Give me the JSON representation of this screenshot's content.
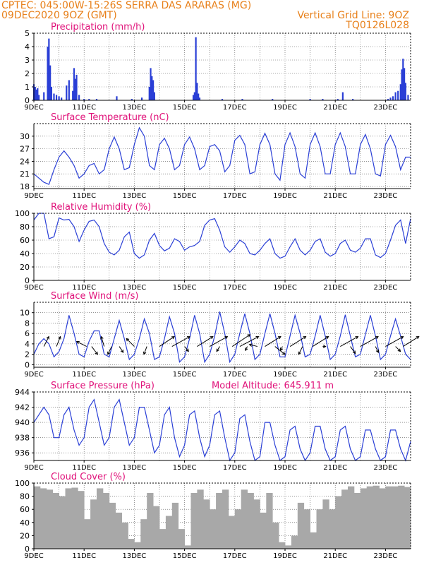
{
  "header": {
    "line1": "CPTEC:   045:00W-15:26S   SERRA DAS ARARAS (MG)",
    "line2": "09DEC2020 9OZ (GMT)",
    "grid_note": "Vertical Grid Line: 9OZ",
    "code": "TQ0126L028"
  },
  "colors": {
    "header": "#e8801a",
    "title": "#e0127a",
    "line": "#2a3fd6",
    "cloud": "#a8a8a8",
    "grid": "#555555"
  },
  "x_axis": {
    "ticks": [
      "9DEC",
      "11DEC",
      "13DEC",
      "15DEC",
      "17DEC",
      "19DEC",
      "21DEC",
      "23DEC"
    ],
    "xlim_days": [
      9,
      24
    ],
    "vertical_grid": "9OZ"
  },
  "chart_data": [
    {
      "type": "bar",
      "title": "Precipitation (mm/h)",
      "ylim": [
        0,
        5
      ],
      "yticks": [
        0,
        1,
        2,
        3,
        4,
        5
      ],
      "x": [
        9.0,
        9.05,
        9.1,
        9.15,
        9.2,
        9.4,
        9.55,
        9.6,
        9.65,
        9.7,
        9.8,
        9.9,
        10.0,
        10.1,
        10.3,
        10.4,
        10.55,
        10.6,
        10.65,
        10.7,
        10.8,
        11.0,
        11.2,
        11.5,
        12.3,
        12.9,
        13.3,
        13.6,
        13.65,
        13.7,
        13.75,
        13.8,
        15.35,
        15.4,
        15.45,
        15.5,
        15.55,
        15.6,
        16.5,
        17.3,
        18.5,
        20.0,
        20.5,
        21.1,
        21.3,
        21.7,
        23.1,
        23.2,
        23.3,
        23.4,
        23.5,
        23.6,
        23.65,
        23.7,
        23.75,
        23.8,
        23.9
      ],
      "values": [
        1.2,
        1.0,
        0.8,
        0.9,
        0.4,
        0.6,
        4.0,
        4.6,
        2.6,
        1.0,
        0.5,
        0.4,
        0.3,
        0.2,
        1.1,
        1.5,
        0.7,
        2.4,
        1.6,
        1.9,
        0.4,
        0.1,
        0.1,
        0.1,
        0.3,
        0.1,
        0.2,
        1.0,
        2.4,
        1.8,
        1.5,
        0.6,
        0.4,
        0.6,
        4.7,
        1.3,
        0.5,
        0.2,
        0.1,
        0.1,
        0.1,
        0.1,
        0.1,
        0.1,
        0.6,
        0.1,
        0.1,
        0.2,
        0.3,
        0.6,
        0.7,
        1.2,
        2.3,
        3.1,
        2.4,
        1.3,
        0.4
      ]
    },
    {
      "type": "line",
      "title": "Surface Temperature (nC)",
      "ylim": [
        17.5,
        33
      ],
      "yticks": [
        18,
        21,
        24,
        27,
        30
      ],
      "x": [
        9.0,
        9.2,
        9.4,
        9.6,
        9.8,
        10.0,
        10.2,
        10.4,
        10.6,
        10.8,
        11.0,
        11.2,
        11.4,
        11.6,
        11.8,
        12.0,
        12.2,
        12.4,
        12.6,
        12.8,
        13.0,
        13.2,
        13.4,
        13.6,
        13.8,
        14.0,
        14.2,
        14.4,
        14.6,
        14.8,
        15.0,
        15.2,
        15.4,
        15.6,
        15.8,
        16.0,
        16.2,
        16.4,
        16.6,
        16.8,
        17.0,
        17.2,
        17.4,
        17.6,
        17.8,
        18.0,
        18.2,
        18.4,
        18.6,
        18.8,
        19.0,
        19.2,
        19.4,
        19.6,
        19.8,
        20.0,
        20.2,
        20.4,
        20.6,
        20.8,
        21.0,
        21.2,
        21.4,
        21.6,
        21.8,
        22.0,
        22.2,
        22.4,
        22.6,
        22.8,
        23.0,
        23.2,
        23.4,
        23.6,
        23.8,
        24.0
      ],
      "values": [
        21,
        20,
        19,
        18.5,
        22,
        25,
        26.5,
        25,
        23,
        20,
        21,
        23,
        23.5,
        21,
        22,
        27,
        29.8,
        27,
        22,
        22.5,
        28,
        32,
        30,
        23,
        22,
        28,
        29.5,
        27,
        22,
        23,
        28,
        29.8,
        27,
        22,
        23,
        27.5,
        28,
        26.5,
        21.5,
        23,
        29,
        30.2,
        28,
        21,
        21.5,
        28,
        30.7,
        28,
        21,
        19.5,
        28,
        30.8,
        27.5,
        21,
        20,
        28,
        30.8,
        27.5,
        21,
        21,
        28,
        30.8,
        27.5,
        21,
        21,
        28,
        30.4,
        27,
        21,
        20.5,
        28,
        30.2,
        27.5,
        22,
        25,
        25
      ]
    },
    {
      "type": "line",
      "title": "Relative Humidity (%)",
      "ylim": [
        0,
        100
      ],
      "yticks": [
        0,
        20,
        40,
        60,
        80,
        100
      ],
      "x": [
        9.0,
        9.2,
        9.4,
        9.6,
        9.8,
        10.0,
        10.2,
        10.4,
        10.6,
        10.8,
        11.0,
        11.2,
        11.4,
        11.6,
        11.8,
        12.0,
        12.2,
        12.4,
        12.6,
        12.8,
        13.0,
        13.2,
        13.4,
        13.6,
        13.8,
        14.0,
        14.2,
        14.4,
        14.6,
        14.8,
        15.0,
        15.2,
        15.4,
        15.6,
        15.8,
        16.0,
        16.2,
        16.4,
        16.6,
        16.8,
        17.0,
        17.2,
        17.4,
        17.6,
        17.8,
        18.0,
        18.2,
        18.4,
        18.6,
        18.8,
        19.0,
        19.2,
        19.4,
        19.6,
        19.8,
        20.0,
        20.2,
        20.4,
        20.6,
        20.8,
        21.0,
        21.2,
        21.4,
        21.6,
        21.8,
        22.0,
        22.2,
        22.4,
        22.6,
        22.8,
        23.0,
        23.2,
        23.4,
        23.6,
        23.8,
        24.0
      ],
      "values": [
        90,
        100,
        100,
        62,
        65,
        93,
        90,
        91,
        80,
        58,
        75,
        88,
        90,
        80,
        55,
        42,
        38,
        45,
        65,
        72,
        40,
        33,
        38,
        60,
        70,
        52,
        44,
        48,
        62,
        58,
        45,
        50,
        52,
        58,
        82,
        90,
        92,
        75,
        50,
        42,
        50,
        60,
        55,
        40,
        38,
        45,
        55,
        62,
        40,
        33,
        36,
        50,
        62,
        45,
        38,
        45,
        58,
        62,
        42,
        36,
        40,
        55,
        60,
        45,
        42,
        48,
        62,
        62,
        38,
        34,
        40,
        60,
        82,
        90,
        55,
        92
      ]
    },
    {
      "type": "line",
      "title": "Surface Wind (m/s)",
      "ylim": [
        -0.5,
        12
      ],
      "yticks": [
        0,
        2,
        4,
        6,
        8,
        10
      ],
      "x": [
        9.0,
        9.2,
        9.4,
        9.6,
        9.8,
        10.0,
        10.2,
        10.4,
        10.6,
        10.8,
        11.0,
        11.2,
        11.4,
        11.6,
        11.8,
        12.0,
        12.2,
        12.4,
        12.6,
        12.8,
        13.0,
        13.2,
        13.4,
        13.6,
        13.8,
        14.0,
        14.2,
        14.4,
        14.6,
        14.8,
        15.0,
        15.2,
        15.4,
        15.6,
        15.8,
        16.0,
        16.2,
        16.4,
        16.6,
        16.8,
        17.0,
        17.2,
        17.4,
        17.6,
        17.8,
        18.0,
        18.2,
        18.4,
        18.6,
        18.8,
        19.0,
        19.2,
        19.4,
        19.6,
        19.8,
        20.0,
        20.2,
        20.4,
        20.6,
        20.8,
        21.0,
        21.2,
        21.4,
        21.6,
        21.8,
        22.0,
        22.2,
        22.4,
        22.6,
        22.8,
        23.0,
        23.2,
        23.4,
        23.6,
        23.8,
        24.0
      ],
      "values": [
        2,
        4,
        5,
        4,
        1.5,
        2.5,
        5,
        9.5,
        6,
        2,
        1.5,
        4.5,
        6.5,
        6.5,
        2,
        1.5,
        5,
        8.5,
        5,
        1,
        2,
        5,
        8.8,
        6,
        1,
        1.5,
        5,
        9.2,
        6,
        0.5,
        1.5,
        5,
        9.5,
        6,
        0.5,
        2,
        5.5,
        10.2,
        6,
        0.5,
        2,
        6,
        9.8,
        6,
        1,
        2,
        6,
        9.8,
        6,
        1.5,
        1.5,
        5.5,
        9.5,
        6,
        1.5,
        2,
        5.5,
        9.5,
        5.5,
        1,
        2,
        5.5,
        9.6,
        5.5,
        1.5,
        2,
        5.8,
        9.5,
        5.5,
        1,
        2,
        5.5,
        8.8,
        5.5,
        2,
        1
      ],
      "arrows_x": [
        9.4,
        9.9,
        11.1,
        11.3,
        11.8,
        12.1,
        12.4,
        13.0,
        13.5,
        14.0,
        14.5,
        15.0,
        15.5,
        16.0,
        16.4,
        16.9,
        17.2,
        17.5,
        17.9,
        18.2,
        18.6,
        18.9,
        19.2,
        19.7,
        20.1,
        20.5,
        21.2,
        21.6,
        22.0,
        22.6,
        23.0,
        23.4,
        23.7
      ],
      "arrows_u": [
        0.5,
        0.4,
        -1.0,
        0.6,
        -0.3,
        -0.4,
        0.4,
        -0.8,
        -0.3,
        1.5,
        1.8,
        0.4,
        1.6,
        1.8,
        -0.3,
        1.8,
        1.9,
        -0.2,
        -0.8,
        1.6,
        1.0,
        -0.2,
        1.6,
        -0.4,
        1.6,
        0.3,
        1.8,
        0.5,
        1.8,
        0.3,
        1.8,
        0.5,
        1.6
      ],
      "arrows_v": [
        1.0,
        1.0,
        0.5,
        -0.8,
        1.0,
        -0.8,
        -0.6,
        0.8,
        -0.8,
        1.0,
        1.0,
        -0.5,
        1.0,
        1.0,
        -0.5,
        1.2,
        1.0,
        -0.4,
        0.2,
        1.0,
        -0.8,
        -0.4,
        1.0,
        -0.8,
        1.0,
        0.0,
        1.0,
        -0.7,
        1.0,
        -0.6,
        1.0,
        -0.5,
        1.0
      ]
    },
    {
      "type": "line",
      "title": "Surface Pressure (hPa)",
      "annotation": "Model Altitude: 645.911  m",
      "ylim": [
        935,
        944
      ],
      "yticks": [
        936,
        938,
        940,
        942,
        944
      ],
      "x": [
        9.0,
        9.2,
        9.4,
        9.6,
        9.8,
        10.0,
        10.2,
        10.4,
        10.6,
        10.8,
        11.0,
        11.2,
        11.4,
        11.6,
        11.8,
        12.0,
        12.2,
        12.4,
        12.6,
        12.8,
        13.0,
        13.2,
        13.4,
        13.6,
        13.8,
        14.0,
        14.2,
        14.4,
        14.6,
        14.8,
        15.0,
        15.2,
        15.4,
        15.6,
        15.8,
        16.0,
        16.2,
        16.4,
        16.6,
        16.8,
        17.0,
        17.2,
        17.4,
        17.6,
        17.8,
        18.0,
        18.2,
        18.4,
        18.6,
        18.8,
        19.0,
        19.2,
        19.4,
        19.6,
        19.8,
        20.0,
        20.2,
        20.4,
        20.6,
        20.8,
        21.0,
        21.2,
        21.4,
        21.6,
        21.8,
        22.0,
        22.2,
        22.4,
        22.6,
        22.8,
        23.0,
        23.2,
        23.4,
        23.6,
        23.8,
        24.0
      ],
      "values": [
        940,
        941,
        942,
        941,
        938,
        938,
        941,
        942,
        939,
        937,
        938,
        942,
        943,
        940,
        937,
        938,
        942,
        943,
        940,
        937,
        938,
        942,
        942,
        939,
        936,
        937,
        941,
        942,
        938,
        935.5,
        937,
        941,
        941.5,
        938,
        935.5,
        937,
        941,
        941.5,
        938,
        935,
        936,
        940.5,
        941,
        937.5,
        935,
        935.5,
        940,
        940,
        937,
        935,
        935.5,
        939,
        939.5,
        936.5,
        935,
        936,
        939.5,
        939.5,
        936.5,
        935,
        935.5,
        939,
        939.5,
        936.5,
        935,
        935.5,
        939,
        939,
        936.5,
        935,
        935.5,
        939,
        939,
        936.5,
        935,
        937.5
      ]
    },
    {
      "type": "bar",
      "title": "Cloud Cover (%)",
      "ylim": [
        0,
        100
      ],
      "yticks": [
        0,
        20,
        40,
        60,
        80,
        100
      ],
      "x": [
        9.0,
        9.25,
        9.5,
        9.75,
        10.0,
        10.25,
        10.5,
        10.75,
        11.0,
        11.25,
        11.5,
        11.75,
        12.0,
        12.25,
        12.5,
        12.75,
        13.0,
        13.25,
        13.5,
        13.75,
        14.0,
        14.25,
        14.5,
        14.75,
        15.0,
        15.25,
        15.5,
        15.75,
        16.0,
        16.25,
        16.5,
        16.75,
        17.0,
        17.25,
        17.5,
        17.75,
        18.0,
        18.25,
        18.5,
        18.75,
        19.0,
        19.25,
        19.5,
        19.75,
        20.0,
        20.25,
        20.5,
        20.75,
        21.0,
        21.25,
        21.5,
        21.75,
        22.0,
        22.25,
        22.5,
        22.75,
        23.0,
        23.25,
        23.5,
        23.75
      ],
      "values": [
        95,
        92,
        90,
        85,
        80,
        92,
        93,
        88,
        45,
        75,
        92,
        85,
        70,
        55,
        40,
        15,
        10,
        45,
        85,
        65,
        30,
        50,
        70,
        30,
        5,
        85,
        90,
        75,
        60,
        85,
        90,
        50,
        60,
        90,
        85,
        75,
        55,
        85,
        40,
        10,
        5,
        20,
        70,
        60,
        25,
        60,
        75,
        60,
        80,
        90,
        95,
        85,
        92,
        95,
        96,
        92,
        95,
        95,
        96,
        94
      ]
    }
  ]
}
